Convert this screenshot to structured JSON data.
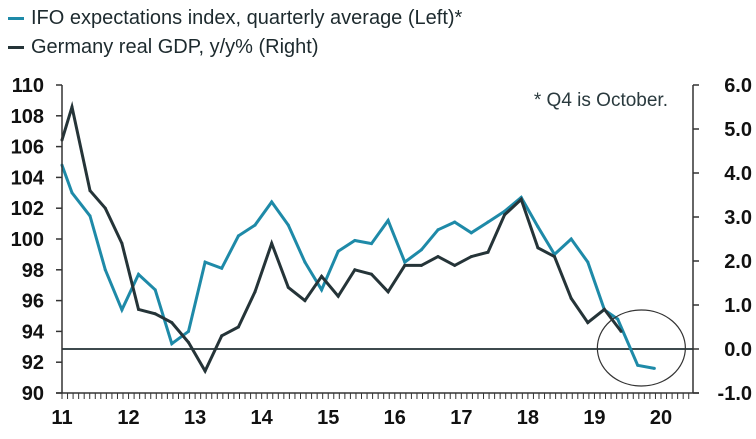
{
  "chart_data": {
    "type": "line",
    "title": "",
    "annotation": "* Q4 is October.",
    "legend_position": "top-left",
    "colors": {
      "ifo": "#1e8aa8",
      "gdp": "#253438",
      "axis": "#333333",
      "zero_line": "#3d4a4d",
      "circle": "#333333"
    },
    "x_ticks": [
      "11",
      "12",
      "13",
      "14",
      "15",
      "16",
      "17",
      "18",
      "19",
      "20"
    ],
    "x_range": [
      2011,
      2020.5
    ],
    "left_axis": {
      "label": "",
      "range": [
        90,
        110
      ],
      "ticks": [
        "90",
        "92",
        "94",
        "96",
        "98",
        "100",
        "102",
        "104",
        "106",
        "108",
        "110"
      ]
    },
    "right_axis": {
      "label": "",
      "range": [
        -1.0,
        6.0
      ],
      "ticks": [
        "-1.0",
        "0.0",
        "1.0",
        "2.0",
        "3.0",
        "4.0",
        "5.0",
        "6.0"
      ]
    },
    "series": [
      {
        "name": "IFO expectations index, quarterly average (Left)*",
        "axis": "left",
        "x": [
          2011.0,
          2011.15,
          2011.42,
          2011.65,
          2011.9,
          2012.15,
          2012.4,
          2012.65,
          2012.9,
          2013.15,
          2013.4,
          2013.65,
          2013.9,
          2014.15,
          2014.4,
          2014.65,
          2014.9,
          2015.15,
          2015.4,
          2015.65,
          2015.9,
          2016.15,
          2016.4,
          2016.65,
          2016.9,
          2017.15,
          2017.4,
          2017.65,
          2017.9,
          2018.15,
          2018.4,
          2018.65,
          2018.9,
          2019.15,
          2019.35,
          2019.65,
          2019.9
        ],
        "values": [
          104.8,
          103.0,
          101.5,
          98.0,
          95.4,
          97.7,
          96.7,
          93.2,
          94.0,
          98.5,
          98.1,
          100.2,
          100.9,
          102.4,
          100.9,
          98.5,
          96.7,
          99.2,
          99.9,
          99.7,
          101.2,
          98.5,
          99.3,
          100.6,
          101.1,
          100.4,
          101.1,
          101.8,
          102.7,
          100.8,
          99.0,
          100.0,
          98.5,
          95.4,
          94.8,
          91.8,
          91.6
        ]
      },
      {
        "name": "Germany real GDP, y/y% (Right)",
        "axis": "right",
        "x": [
          2011.0,
          2011.15,
          2011.42,
          2011.65,
          2011.9,
          2012.15,
          2012.4,
          2012.65,
          2012.9,
          2013.15,
          2013.4,
          2013.65,
          2013.9,
          2014.15,
          2014.4,
          2014.65,
          2014.9,
          2015.15,
          2015.4,
          2015.65,
          2015.9,
          2016.15,
          2016.4,
          2016.65,
          2016.9,
          2017.15,
          2017.4,
          2017.65,
          2017.9,
          2018.15,
          2018.4,
          2018.65,
          2018.9,
          2019.15,
          2019.4
        ],
        "values": [
          4.75,
          5.5,
          3.6,
          3.2,
          2.4,
          0.9,
          0.8,
          0.6,
          0.15,
          -0.5,
          0.3,
          0.5,
          1.3,
          2.4,
          1.4,
          1.1,
          1.65,
          1.2,
          1.8,
          1.7,
          1.3,
          1.9,
          1.9,
          2.1,
          1.9,
          2.1,
          2.2,
          3.05,
          3.4,
          2.3,
          2.1,
          1.15,
          0.6,
          0.9,
          0.4
        ]
      }
    ],
    "reference_line": {
      "axis": "right",
      "value": 0.0
    },
    "highlight_circle": {
      "x_center": 2019.75,
      "y_center_right": 0.0,
      "description": "circle around late-2019 data"
    }
  }
}
